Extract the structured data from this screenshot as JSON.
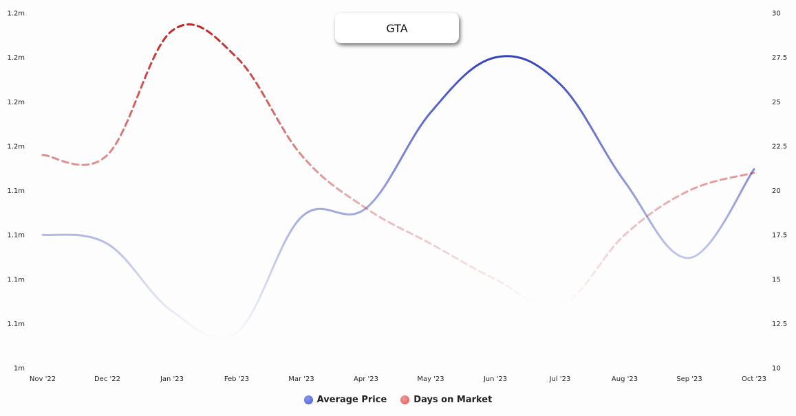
{
  "chart_data": {
    "type": "line",
    "title": "GTA",
    "categories": [
      "Nov '22",
      "Dec '22",
      "Jan '23",
      "Feb '23",
      "Mar '23",
      "Apr '23",
      "May '23",
      "Jun '23",
      "Jul '23",
      "Aug '23",
      "Sep '23",
      "Oct '23"
    ],
    "y_left": {
      "tick_labels": [
        "1m",
        "1.1m",
        "1.1m",
        "1.1m",
        "1.1m",
        "1.2m",
        "1.2m",
        "1.2m",
        "1.2m"
      ],
      "range": [
        1000000,
        1200000
      ]
    },
    "y_right": {
      "tick_labels": [
        "10",
        "12.5",
        "15",
        "17.5",
        "20",
        "22.5",
        "25",
        "27.5",
        "30"
      ],
      "range": [
        10,
        30
      ]
    },
    "series": [
      {
        "name": "Average Price",
        "axis": "left",
        "style": "solid",
        "color": "#3344bb",
        "values": [
          1075000,
          1070000,
          1032000,
          1020000,
          1085000,
          1090000,
          1144000,
          1175000,
          1160000,
          1105000,
          1062000,
          1112000
        ]
      },
      {
        "name": "Days on Market",
        "axis": "right",
        "style": "dashed",
        "color": "#c03030",
        "values": [
          22,
          22,
          29,
          27.5,
          22,
          19,
          17,
          15,
          13.5,
          17.5,
          20,
          21
        ]
      }
    ],
    "grid": false,
    "legend_position": "bottom-center"
  },
  "legend": {
    "average_price_color": "#4a5ad0",
    "days_on_market_color": "#e05555"
  }
}
